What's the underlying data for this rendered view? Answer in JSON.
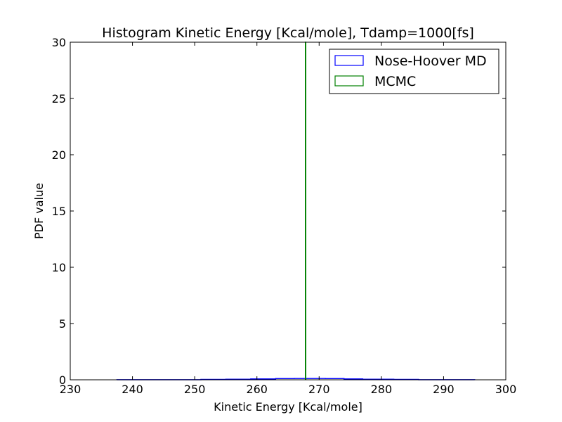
{
  "chart_data": {
    "type": "histogram",
    "title": "Histogram Kinetic Energy [Kcal/mole], Tdamp=1000[fs]",
    "xlabel": "Kinetic Energy [Kcal/mole]",
    "ylabel": "PDF value",
    "xlim": [
      230,
      300
    ],
    "ylim": [
      0,
      30
    ],
    "xticks": [
      230,
      240,
      250,
      260,
      270,
      280,
      290,
      300
    ],
    "yticks": [
      0,
      5,
      10,
      15,
      20,
      25,
      30
    ],
    "grid": false,
    "legend_position": "upper-right",
    "series": [
      {
        "name": "Nose-Hoover MD",
        "color": "#0000ff",
        "style": "step-outline",
        "bin_edges": [
          237.5,
          245,
          251,
          255,
          259,
          263,
          266,
          268,
          271,
          274,
          277,
          282,
          286,
          290,
          295
        ],
        "values": [
          0.01,
          0.01,
          0.03,
          0.05,
          0.08,
          0.11,
          0.12,
          0.12,
          0.11,
          0.08,
          0.05,
          0.03,
          0.01,
          0.01
        ]
      },
      {
        "name": "MCMC",
        "color": "#008000",
        "style": "step-outline",
        "bin_edges": [
          267.8,
          267.85
        ],
        "values": [
          30
        ]
      }
    ]
  }
}
